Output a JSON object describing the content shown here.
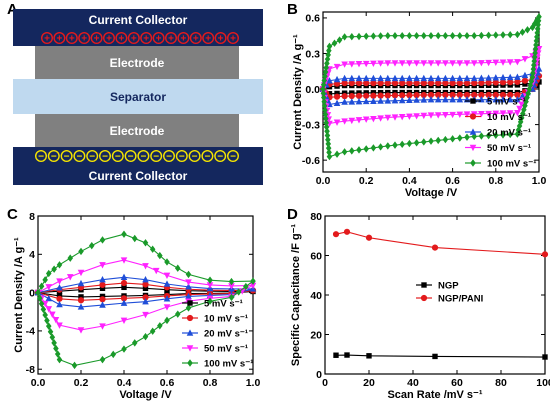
{
  "colors": {
    "collector": "#14275e",
    "electrode": "#808080",
    "separator": "#bfd9ef",
    "plus_ring": "#e31a1c",
    "minus_ring": "#f5e400"
  },
  "panel_a": {
    "label": "A",
    "top_collector": "Current Collector",
    "top_electrode": "Electrode",
    "separator": "Separator",
    "bottom_electrode": "Electrode",
    "bottom_collector": "Current Collector",
    "plus_symbol": "+",
    "minus_symbol": "−",
    "plus_count": 16,
    "minus_count": 16
  },
  "chart_data": [
    {
      "panel": "B",
      "type": "line",
      "xlabel": "Voltage /V",
      "ylabel": "Current Density /A g⁻¹",
      "xlim": [
        0.0,
        1.0
      ],
      "ylim": [
        -0.7,
        0.65
      ],
      "xticks": [
        "0.0",
        "0.2",
        "0.4",
        "0.6",
        "0.8",
        "1.0"
      ],
      "yticks": [
        "-0.6",
        "-0.3",
        "0.0",
        "0.3",
        "0.6"
      ],
      "xtick_values": [
        0.0,
        0.2,
        0.4,
        0.6,
        0.8,
        1.0
      ],
      "ytick_values": [
        -0.6,
        -0.3,
        0.0,
        0.3,
        0.6
      ],
      "legend_position": "right",
      "series": [
        {
          "name": "5 mV s⁻¹",
          "color": "#000000",
          "marker": "square",
          "x": [
            0,
            0.03,
            0.1,
            0.3,
            0.5,
            0.7,
            0.9,
            0.97,
            1.0,
            0.97,
            0.9,
            0.7,
            0.5,
            0.3,
            0.1,
            0.03,
            0
          ],
          "y": [
            0.0,
            0.02,
            0.03,
            0.03,
            0.03,
            0.03,
            0.035,
            0.05,
            0.06,
            0.0,
            -0.03,
            -0.03,
            -0.03,
            -0.03,
            -0.035,
            -0.04,
            0.0
          ]
        },
        {
          "name": "10 mV s⁻¹",
          "color": "#e31a1c",
          "marker": "circle",
          "x": [
            0,
            0.03,
            0.1,
            0.3,
            0.5,
            0.7,
            0.9,
            0.97,
            1.0,
            0.97,
            0.9,
            0.7,
            0.5,
            0.3,
            0.1,
            0.03,
            0
          ],
          "y": [
            0.0,
            0.04,
            0.05,
            0.05,
            0.05,
            0.05,
            0.06,
            0.08,
            0.11,
            0.0,
            -0.05,
            -0.05,
            -0.05,
            -0.055,
            -0.06,
            -0.07,
            0.0
          ]
        },
        {
          "name": "20 mV s⁻¹",
          "color": "#1f4ed8",
          "marker": "triangle",
          "x": [
            0,
            0.03,
            0.1,
            0.3,
            0.5,
            0.7,
            0.9,
            0.97,
            1.0,
            0.97,
            0.9,
            0.7,
            0.5,
            0.3,
            0.1,
            0.03,
            0
          ],
          "y": [
            0.0,
            0.07,
            0.09,
            0.09,
            0.09,
            0.09,
            0.1,
            0.13,
            0.17,
            0.0,
            -0.09,
            -0.09,
            -0.09,
            -0.1,
            -0.11,
            -0.13,
            0.0
          ]
        },
        {
          "name": "50 mV s⁻¹",
          "color": "#ff22ff",
          "marker": "triangle-down",
          "x": [
            0,
            0.03,
            0.1,
            0.3,
            0.5,
            0.7,
            0.9,
            0.97,
            1.0,
            0.97,
            0.9,
            0.7,
            0.5,
            0.3,
            0.1,
            0.03,
            0
          ],
          "y": [
            0.0,
            0.17,
            0.21,
            0.22,
            0.22,
            0.22,
            0.23,
            0.28,
            0.34,
            0.05,
            -0.2,
            -0.21,
            -0.22,
            -0.24,
            -0.27,
            -0.29,
            0.0
          ]
        },
        {
          "name": "100 mV s⁻¹",
          "color": "#1a9a2a",
          "marker": "diamond",
          "x": [
            0,
            0.03,
            0.1,
            0.3,
            0.5,
            0.7,
            0.9,
            0.97,
            1.0,
            0.97,
            0.9,
            0.7,
            0.5,
            0.3,
            0.1,
            0.03,
            0
          ],
          "y": [
            0.0,
            0.36,
            0.44,
            0.45,
            0.45,
            0.45,
            0.46,
            0.52,
            0.61,
            0.1,
            -0.38,
            -0.4,
            -0.44,
            -0.48,
            -0.53,
            -0.57,
            0.0
          ]
        }
      ]
    },
    {
      "panel": "C",
      "type": "line",
      "xlabel": "Voltage /V",
      "ylabel": "Current Density /A g⁻¹",
      "xlim": [
        0.0,
        1.0
      ],
      "ylim": [
        -8.5,
        8
      ],
      "xticks": [
        "0.0",
        "0.2",
        "0.4",
        "0.6",
        "0.8",
        "1.0"
      ],
      "yticks": [
        "-8",
        "-4",
        "0",
        "4",
        "8"
      ],
      "xtick_values": [
        0.0,
        0.2,
        0.4,
        0.6,
        0.8,
        1.0
      ],
      "ytick_values": [
        -8,
        -4,
        0,
        4,
        8
      ],
      "legend_position": "bottom-right",
      "series": [
        {
          "name": "5 mV s⁻¹",
          "color": "#000000",
          "marker": "square",
          "x": [
            0,
            0.1,
            0.2,
            0.3,
            0.4,
            0.5,
            0.6,
            0.7,
            0.8,
            0.9,
            1.0,
            0.9,
            0.8,
            0.7,
            0.6,
            0.5,
            0.4,
            0.3,
            0.2,
            0.1,
            0
          ],
          "y": [
            0.0,
            0.15,
            0.3,
            0.45,
            0.55,
            0.45,
            0.3,
            0.2,
            0.15,
            0.12,
            0.12,
            -0.05,
            -0.08,
            -0.1,
            -0.2,
            -0.3,
            -0.35,
            -0.4,
            -0.45,
            -0.35,
            0.0
          ]
        },
        {
          "name": "10 mV s⁻¹",
          "color": "#e31a1c",
          "marker": "circle",
          "x": [
            0,
            0.1,
            0.2,
            0.3,
            0.4,
            0.5,
            0.6,
            0.7,
            0.8,
            0.9,
            1.0,
            0.9,
            0.8,
            0.7,
            0.6,
            0.5,
            0.4,
            0.3,
            0.2,
            0.1,
            0
          ],
          "y": [
            0.0,
            0.3,
            0.55,
            0.8,
            1.0,
            0.85,
            0.55,
            0.35,
            0.25,
            0.22,
            0.22,
            -0.1,
            -0.15,
            -0.2,
            -0.35,
            -0.5,
            -0.6,
            -0.7,
            -0.8,
            -0.65,
            0.0
          ]
        },
        {
          "name": "20 mV s⁻¹",
          "color": "#1f4ed8",
          "marker": "triangle",
          "x": [
            0,
            0.1,
            0.2,
            0.3,
            0.4,
            0.5,
            0.6,
            0.7,
            0.8,
            0.9,
            1.0,
            0.9,
            0.8,
            0.7,
            0.6,
            0.5,
            0.4,
            0.3,
            0.2,
            0.1,
            0
          ],
          "y": [
            0.0,
            0.5,
            0.95,
            1.35,
            1.6,
            1.35,
            0.9,
            0.6,
            0.42,
            0.38,
            0.38,
            -0.2,
            -0.3,
            -0.4,
            -0.65,
            -0.95,
            -1.1,
            -1.3,
            -1.5,
            -1.25,
            0.0
          ]
        },
        {
          "name": "50 mV s⁻¹",
          "color": "#ff22ff",
          "marker": "triangle-down",
          "x": [
            0,
            0.1,
            0.2,
            0.3,
            0.4,
            0.5,
            0.6,
            0.7,
            0.8,
            0.9,
            1.0,
            0.9,
            0.8,
            0.7,
            0.6,
            0.5,
            0.4,
            0.3,
            0.2,
            0.1,
            0
          ],
          "y": [
            0.0,
            1.2,
            2.1,
            2.9,
            3.4,
            2.8,
            1.8,
            1.1,
            0.8,
            0.7,
            0.75,
            -0.4,
            -0.6,
            -0.9,
            -1.5,
            -2.3,
            -2.9,
            -3.5,
            -3.9,
            -3.4,
            0.0
          ]
        },
        {
          "name": "100 mV s⁻¹",
          "color": "#1a9a2a",
          "marker": "diamond",
          "x": [
            0,
            0.05,
            0.1,
            0.2,
            0.3,
            0.4,
            0.5,
            0.6,
            0.7,
            0.8,
            0.9,
            1.0,
            0.9,
            0.8,
            0.7,
            0.6,
            0.5,
            0.4,
            0.3,
            0.17,
            0.1,
            0
          ],
          "y": [
            0.0,
            2.0,
            2.9,
            4.3,
            5.5,
            6.1,
            5.2,
            3.2,
            1.9,
            1.3,
            1.15,
            1.2,
            -0.5,
            -0.9,
            -1.6,
            -2.9,
            -4.6,
            -5.9,
            -7.0,
            -7.6,
            -7.0,
            0.0
          ]
        }
      ]
    },
    {
      "panel": "D",
      "type": "line",
      "xlabel": "Scan Rate /mV s⁻¹",
      "ylabel": "Specific Capacitance /F g⁻¹",
      "xlim": [
        0,
        100
      ],
      "ylim": [
        0,
        80
      ],
      "xticks": [
        "0",
        "20",
        "40",
        "60",
        "80",
        "100"
      ],
      "yticks": [
        "0",
        "20",
        "40",
        "60",
        "80"
      ],
      "xtick_values": [
        0,
        20,
        40,
        60,
        80,
        100
      ],
      "ytick_values": [
        0,
        20,
        40,
        60,
        80
      ],
      "legend_position": "middle-right",
      "series": [
        {
          "name": "NGP",
          "color": "#000000",
          "marker": "square",
          "x": [
            5,
            10,
            20,
            50,
            100
          ],
          "y": [
            9.5,
            9.6,
            9.2,
            8.9,
            8.6
          ]
        },
        {
          "name": "NGP/PANI",
          "color": "#e31a1c",
          "marker": "circle",
          "x": [
            5,
            10,
            20,
            50,
            100
          ],
          "y": [
            70.8,
            72.0,
            69.0,
            64.0,
            60.6
          ]
        }
      ]
    }
  ]
}
